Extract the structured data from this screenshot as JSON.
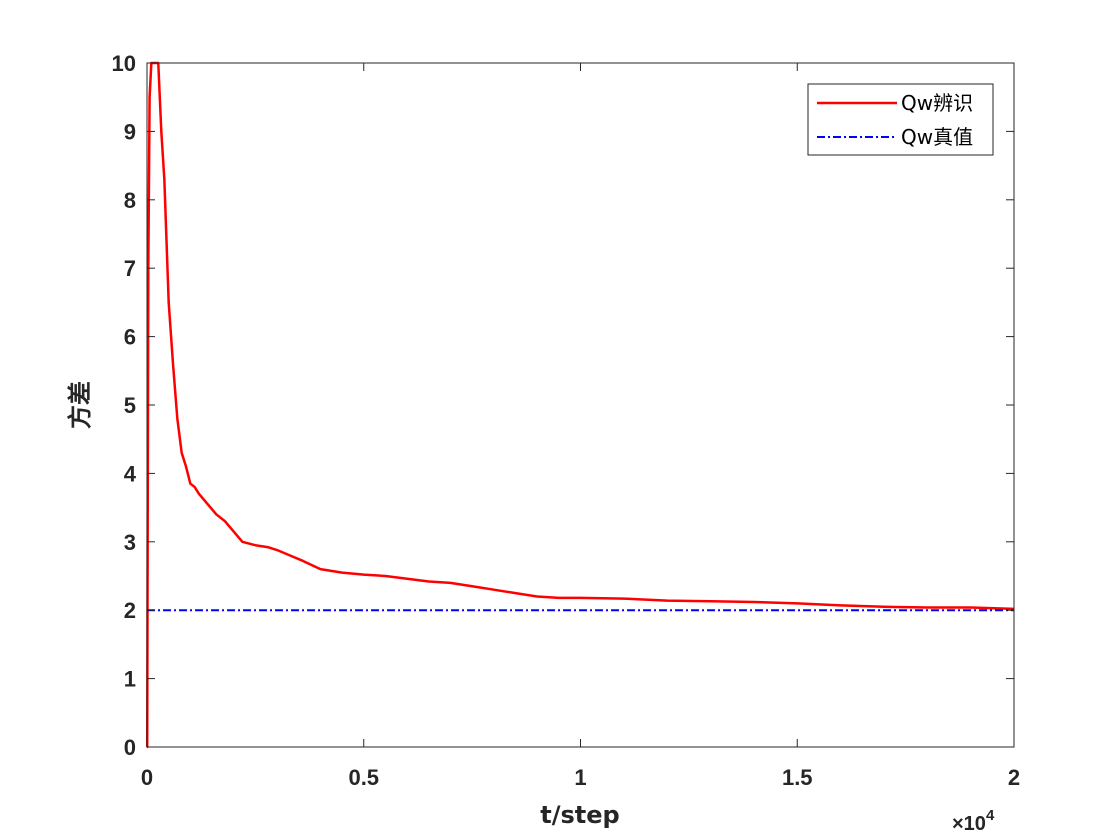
{
  "chart_data": {
    "type": "line",
    "xlabel": "t/step",
    "ylabel": "方差",
    "xlim": [
      0,
      20000
    ],
    "ylim": [
      0,
      10
    ],
    "x_ticks": [
      0,
      5000,
      10000,
      15000,
      20000
    ],
    "x_tick_labels": [
      "0",
      "0.5",
      "1",
      "1.5",
      "2"
    ],
    "y_ticks": [
      0,
      1,
      2,
      3,
      4,
      5,
      6,
      7,
      8,
      9,
      10
    ],
    "y_tick_labels": [
      "0",
      "1",
      "2",
      "3",
      "4",
      "5",
      "6",
      "7",
      "8",
      "9",
      "10"
    ],
    "x_exponent_base": "×10",
    "x_exponent_power": "4",
    "grid": false,
    "legend_position": "top-right",
    "series": [
      {
        "name": "Qw辨识",
        "color": "#ff0000",
        "line_style": "solid",
        "x": [
          0,
          5,
          15,
          30,
          60,
          100,
          150,
          200,
          260,
          330,
          400,
          500,
          600,
          700,
          800,
          900,
          1000,
          1100,
          1200,
          1400,
          1600,
          1800,
          2000,
          2200,
          2500,
          2800,
          3000,
          3300,
          3600,
          4000,
          4500,
          5000,
          5500,
          6000,
          6500,
          7000,
          7500,
          8000,
          8500,
          9000,
          9500,
          10000,
          11000,
          12000,
          13000,
          14000,
          15000,
          16000,
          17000,
          18000,
          19000,
          20000
        ],
        "y": [
          0,
          0,
          3,
          7,
          9.5,
          10,
          10,
          10,
          10,
          9,
          8.3,
          6.5,
          5.6,
          4.8,
          4.3,
          4.1,
          3.85,
          3.8,
          3.7,
          3.55,
          3.4,
          3.3,
          3.15,
          3.0,
          2.95,
          2.92,
          2.88,
          2.8,
          2.72,
          2.6,
          2.55,
          2.52,
          2.5,
          2.46,
          2.42,
          2.4,
          2.35,
          2.3,
          2.25,
          2.2,
          2.18,
          2.18,
          2.17,
          2.14,
          2.13,
          2.12,
          2.1,
          2.07,
          2.05,
          2.04,
          2.04,
          2.02
        ]
      },
      {
        "name": "Qw真值",
        "color": "#0000ff",
        "line_style": "dash-dot",
        "x": [
          0,
          20000
        ],
        "y": [
          2,
          2
        ]
      }
    ]
  }
}
